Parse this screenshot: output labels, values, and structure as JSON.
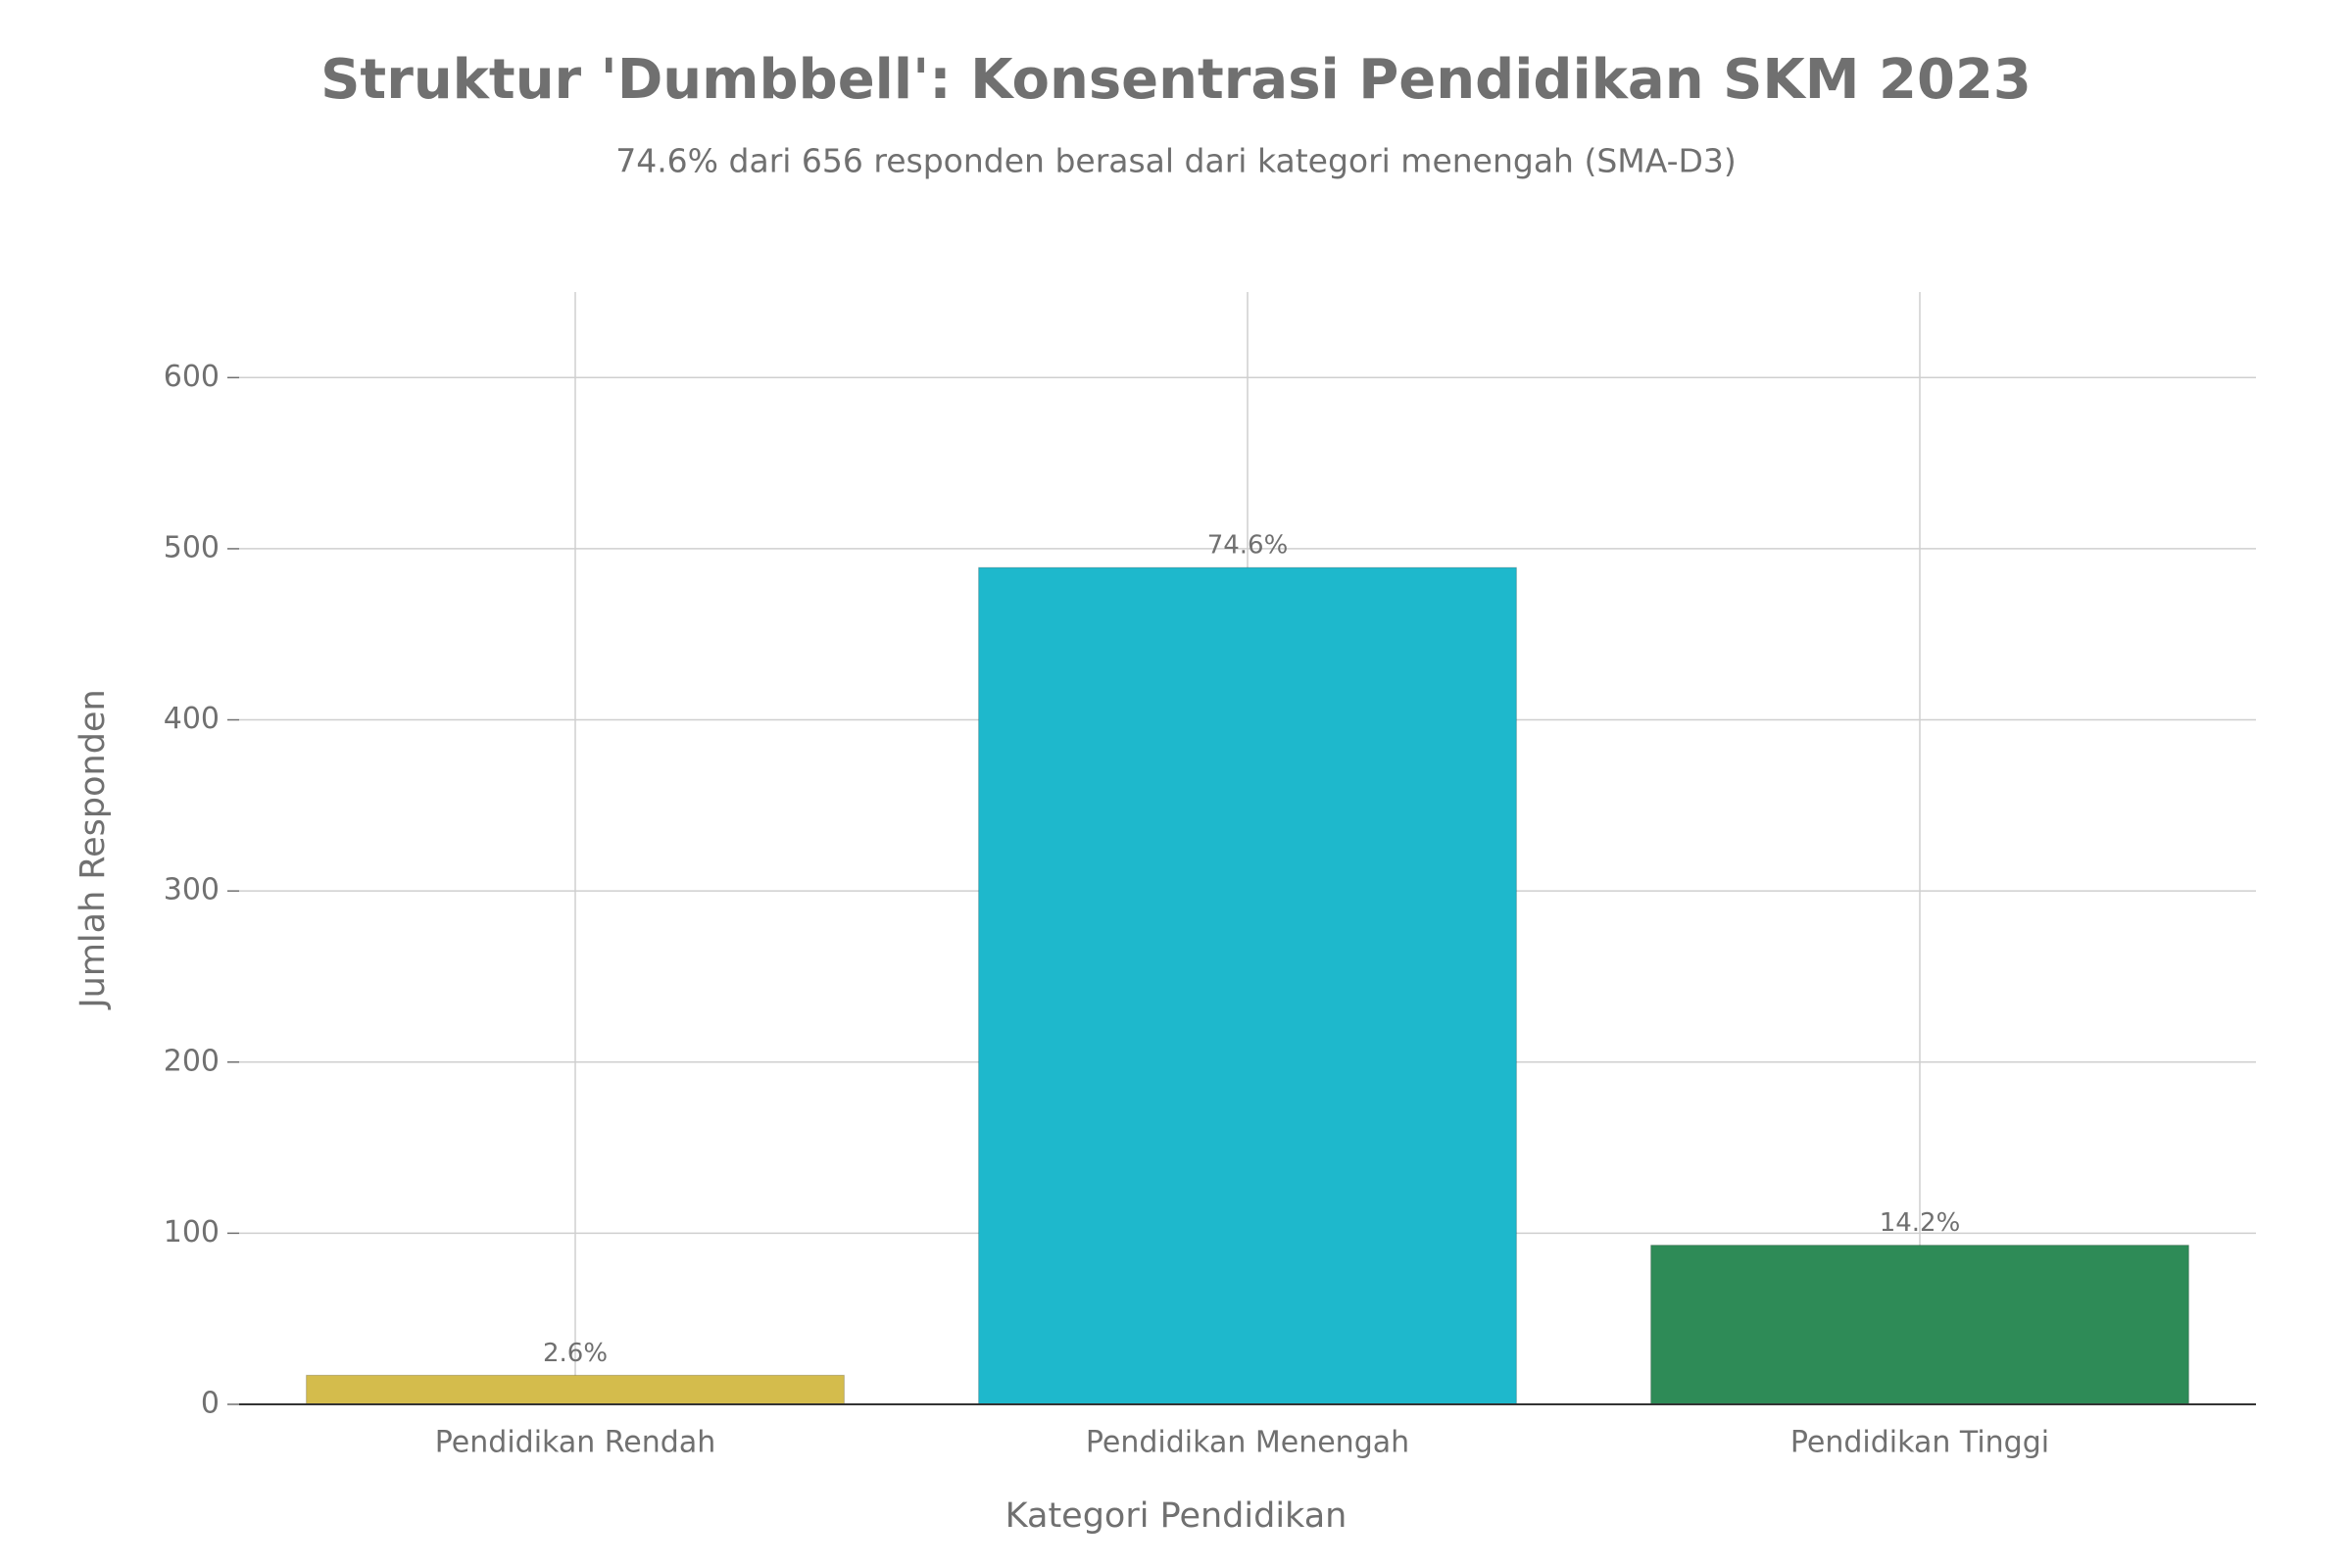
{
  "chart_data": {
    "type": "bar",
    "title": "Struktur 'Dumbbell': Konsentrasi Pendidikan SKM 2023",
    "subtitle": "74.6% dari 656 responden berasal dari kategori menengah (SMA-D3)",
    "x_label": "Kategori Pendidikan",
    "y_label": "Jumlah Responden",
    "categories": [
      "Pendidikan Rendah",
      "Pendidikan Menengah",
      "Pendidikan Tinggi"
    ],
    "values": [
      17,
      489,
      93
    ],
    "bar_labels": [
      "2.6%",
      "74.6%",
      "14.2%"
    ],
    "colors": [
      "#d4bc4c",
      "#1eb8cc",
      "#2e8b57"
    ],
    "ylim": [
      0,
      650
    ],
    "yticks": [
      0,
      100,
      200,
      300,
      400,
      500,
      600
    ],
    "grid": true
  }
}
